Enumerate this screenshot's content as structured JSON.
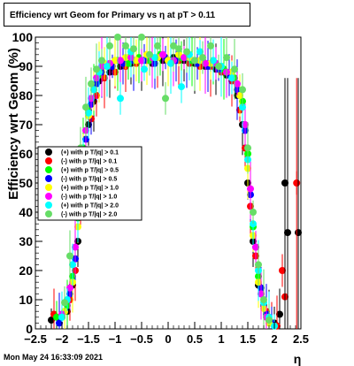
{
  "title": "Efficiency wrt Geom for Primary vs   η at pT > 0.11",
  "footer": "Mon May 24 16:33:09 2021",
  "chart_data": {
    "type": "scatter",
    "xlabel": "η",
    "ylabel": "Efficiency wrt Geom (%)",
    "xlim": [
      -2.5,
      2.5
    ],
    "ylim": [
      0,
      100
    ],
    "xticks": [
      "−2.5",
      "−2",
      "−1.5",
      "−1",
      "−0.5",
      "0",
      "0.5",
      "1",
      "1.5",
      "2",
      "2.5"
    ],
    "yticks": [
      "0",
      "10",
      "20",
      "30",
      "40",
      "50",
      "60",
      "70",
      "80",
      "90",
      "100"
    ],
    "grid": false,
    "legend_position": "left-middle",
    "legend": [
      {
        "label": "(+) with p T/|q| > 0.1",
        "color": "#000000"
      },
      {
        "label": "(-) with p T/|q| > 0.1",
        "color": "#ff0000"
      },
      {
        "label": "(+) with p T/|q| > 0.5",
        "color": "#00ff00"
      },
      {
        "label": "(-) with p T/|q| > 0.5",
        "color": "#0000ff"
      },
      {
        "label": "(+) with p T/|q| > 1.0",
        "color": "#ffff00"
      },
      {
        "label": "(-) with p T/|q| > 1.0",
        "color": "#ff00ff"
      },
      {
        "label": "(+) with p T/|q| > 2.0",
        "color": "#00ffff"
      },
      {
        "label": "(-) with p T/|q| > 2.0",
        "color": "#66dd66"
      }
    ],
    "series": [
      {
        "name": "(+) with p T/|q| > 0.1",
        "color": "#000000",
        "x": [
          -2.2,
          -2.0,
          -1.9,
          -1.8,
          -1.7,
          -1.6,
          -1.5,
          -1.4,
          -1.3,
          -1.1,
          -0.9,
          -0.7,
          -0.5,
          -0.3,
          -0.1,
          0.1,
          0.3,
          0.5,
          0.7,
          0.9,
          1.1,
          1.3,
          1.4,
          1.5,
          1.6,
          1.7,
          1.8,
          1.9,
          2.0,
          2.1,
          2.2,
          2.25,
          2.45
        ],
        "y": [
          3,
          4,
          6,
          15,
          30,
          55,
          70,
          78,
          85,
          88,
          90,
          91,
          92,
          91,
          92,
          93,
          92,
          91,
          90,
          89,
          87,
          80,
          70,
          50,
          30,
          15,
          8,
          3,
          2,
          5,
          50,
          33,
          33
        ]
      },
      {
        "name": "(-) with p T/|q| > 0.1",
        "color": "#ff0000",
        "x": [
          -2.15,
          -1.95,
          -1.85,
          -1.75,
          -1.65,
          -1.55,
          -1.45,
          -1.35,
          -1.2,
          -1.0,
          -0.8,
          -0.6,
          -0.4,
          -0.2,
          0.0,
          0.2,
          0.4,
          0.6,
          0.8,
          1.0,
          1.2,
          1.35,
          1.45,
          1.55,
          1.65,
          1.75,
          1.85,
          1.95,
          2.05,
          2.15,
          2.2,
          2.42
        ],
        "y": [
          5,
          6,
          10,
          20,
          40,
          60,
          72,
          80,
          86,
          88,
          90,
          91,
          92,
          93,
          92,
          92,
          91,
          90,
          90,
          88,
          85,
          75,
          62,
          42,
          25,
          12,
          6,
          2,
          1,
          20,
          11,
          50
        ]
      },
      {
        "name": "(+) with p T/|q| > 0.5",
        "color": "#00ff00",
        "x": [
          -2.1,
          -1.9,
          -1.8,
          -1.7,
          -1.6,
          -1.5,
          -1.4,
          -1.3,
          -1.15,
          -0.95,
          -0.75,
          -0.55,
          -0.35,
          -0.15,
          0.05,
          0.25,
          0.45,
          0.65,
          0.85,
          1.05,
          1.25,
          1.4,
          1.5,
          1.6,
          1.7,
          1.8,
          1.9,
          2.0
        ],
        "y": [
          4,
          8,
          18,
          38,
          62,
          75,
          82,
          87,
          90,
          92,
          91,
          93,
          92,
          94,
          91,
          93,
          92,
          92,
          91,
          89,
          86,
          78,
          60,
          35,
          18,
          8,
          3,
          1
        ]
      },
      {
        "name": "(-) with p T/|q| > 0.5",
        "color": "#0000ff",
        "x": [
          -2.05,
          -1.85,
          -1.75,
          -1.65,
          -1.55,
          -1.45,
          -1.35,
          -1.25,
          -1.05,
          -0.85,
          -0.65,
          -0.45,
          -0.25,
          -0.05,
          0.15,
          0.35,
          0.55,
          0.75,
          0.95,
          1.15,
          1.3,
          1.45,
          1.55,
          1.65,
          1.75,
          1.85,
          1.95
        ],
        "y": [
          2,
          12,
          24,
          45,
          65,
          77,
          84,
          88,
          90,
          91,
          92,
          92,
          91,
          93,
          92,
          93,
          91,
          90,
          89,
          87,
          82,
          68,
          46,
          28,
          14,
          5,
          2
        ]
      },
      {
        "name": "(+) with p T/|q| > 1.0",
        "color": "#ffff00",
        "x": [
          -1.95,
          -1.8,
          -1.7,
          -1.6,
          -1.5,
          -1.4,
          -1.3,
          -1.2,
          -1.0,
          -0.8,
          -0.6,
          -0.4,
          -0.2,
          0.0,
          0.2,
          0.4,
          0.6,
          0.8,
          1.0,
          1.2,
          1.35,
          1.5,
          1.6,
          1.7,
          1.8,
          1.9
        ],
        "y": [
          6,
          16,
          35,
          58,
          73,
          82,
          88,
          91,
          92,
          93,
          92,
          94,
          93,
          92,
          94,
          93,
          92,
          91,
          90,
          88,
          80,
          55,
          32,
          16,
          7,
          2
        ]
      },
      {
        "name": "(-) with p T/|q| > 1.0",
        "color": "#ff00ff",
        "x": [
          -2.0,
          -1.85,
          -1.75,
          -1.65,
          -1.55,
          -1.45,
          -1.35,
          -1.25,
          -1.1,
          -0.9,
          -0.7,
          -0.5,
          -0.3,
          -0.1,
          0.1,
          0.3,
          0.5,
          0.7,
          0.9,
          1.1,
          1.3,
          1.45,
          1.55,
          1.65,
          1.75,
          1.85
        ],
        "y": [
          5,
          14,
          28,
          48,
          68,
          79,
          86,
          90,
          91,
          92,
          93,
          92,
          93,
          94,
          92,
          93,
          92,
          91,
          91,
          88,
          84,
          70,
          48,
          28,
          12,
          4
        ]
      },
      {
        "name": "(+) with p T/|q| > 2.0",
        "color": "#00ffff",
        "x": [
          -2.0,
          -1.9,
          -1.8,
          -1.7,
          -1.6,
          -1.5,
          -1.4,
          -1.3,
          -1.15,
          -0.9,
          -0.7,
          -0.45,
          -0.25,
          0.05,
          0.25,
          0.4,
          0.6,
          0.85,
          1.0,
          1.2,
          1.4,
          1.5,
          1.6,
          1.7,
          1.8,
          1.9,
          2.0
        ],
        "y": [
          4,
          10,
          22,
          40,
          60,
          74,
          82,
          88,
          90,
          79,
          95,
          89,
          93,
          91,
          83,
          94,
          95,
          92,
          90,
          86,
          76,
          58,
          36,
          20,
          9,
          4,
          1
        ]
      },
      {
        "name": "(-) with p T/|q| > 2.0",
        "color": "#66dd66",
        "x": [
          -1.95,
          -1.85,
          -1.75,
          -1.65,
          -1.55,
          -1.45,
          -1.35,
          -1.25,
          -1.1,
          -0.95,
          -0.8,
          -0.65,
          -0.5,
          -0.35,
          -0.2,
          -0.05,
          0.1,
          0.2,
          0.35,
          0.5,
          0.65,
          0.8,
          0.95,
          1.1,
          1.25,
          1.4,
          1.5,
          1.6,
          1.7,
          1.8,
          1.9
        ],
        "y": [
          9,
          25,
          42,
          62,
          76,
          84,
          89,
          92,
          97,
          100,
          97,
          96,
          100,
          94,
          97,
          79,
          97,
          96,
          95,
          92,
          93,
          97,
          90,
          93,
          89,
          82,
          62,
          40,
          22,
          10,
          3
        ]
      }
    ]
  }
}
